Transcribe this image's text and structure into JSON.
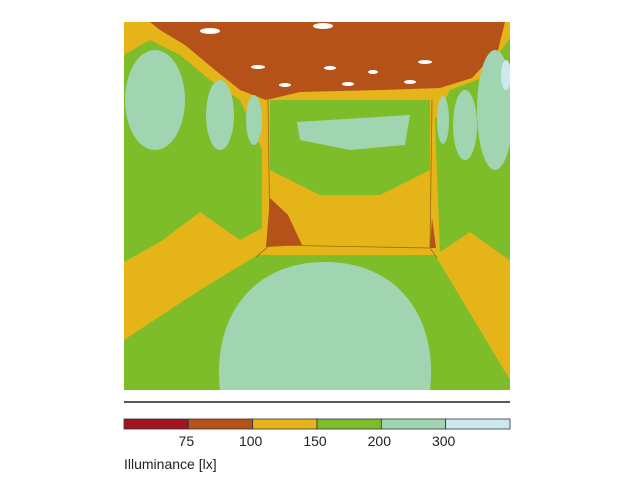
{
  "legend": {
    "title": "Illuminance [lx]",
    "colors": [
      "#a1141e",
      "#b5521a",
      "#e4b418",
      "#7dbd2a",
      "#a1d4b1",
      "#cde9ef"
    ],
    "ticks": [
      75,
      100,
      150,
      200,
      300
    ]
  }
}
